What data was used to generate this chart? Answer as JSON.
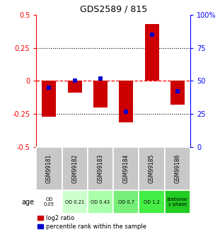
{
  "title": "GDS2589 / 815",
  "samples": [
    "GSM99181",
    "GSM99182",
    "GSM99183",
    "GSM99184",
    "GSM99185",
    "GSM99186"
  ],
  "log2_ratio": [
    -0.27,
    -0.09,
    -0.2,
    -0.31,
    0.43,
    -0.18
  ],
  "percentile_rank_pct": [
    45,
    50,
    52,
    27,
    85,
    42
  ],
  "ylim": [
    -0.5,
    0.5
  ],
  "ylim_right": [
    0,
    100
  ],
  "yticks_left": [
    -0.5,
    -0.25,
    0,
    0.25,
    0.5
  ],
  "yticks_right": [
    0,
    25,
    50,
    75,
    100
  ],
  "bar_color": "#cc0000",
  "dot_color": "#0000cc",
  "age_labels": [
    "OD\n0.05",
    "OD 0.21",
    "OD 0.43",
    "OD 0.7",
    "OD 1.2",
    "stationar\ny phase"
  ],
  "age_bg_colors": [
    "#ffffff",
    "#ccffcc",
    "#aaffaa",
    "#77ee77",
    "#44ee44",
    "#22cc22"
  ],
  "sample_bg_color": "#c8c8c8",
  "legend_log2": "log2 ratio",
  "legend_pct": "percentile rank within the sample",
  "bar_width": 0.55
}
